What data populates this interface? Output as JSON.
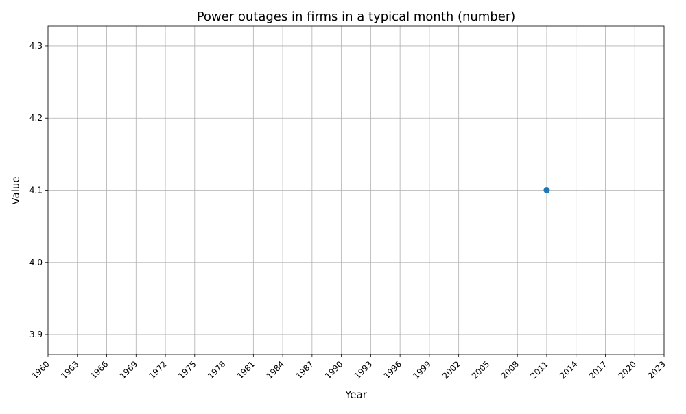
{
  "chart_data": {
    "type": "scatter",
    "title": "Power outages in firms in a typical month (number)",
    "xlabel": "Year",
    "ylabel": "Value",
    "xlim": [
      1960,
      2023
    ],
    "ylim": [
      3.8725,
      4.3275
    ],
    "x_ticks": [
      "1960",
      "1963",
      "1966",
      "1969",
      "1972",
      "1975",
      "1978",
      "1981",
      "1984",
      "1987",
      "1990",
      "1993",
      "1996",
      "1999",
      "2002",
      "2005",
      "2008",
      "2011",
      "2014",
      "2017",
      "2020",
      "2023"
    ],
    "y_ticks": [
      "3.9",
      "4.0",
      "4.1",
      "4.2",
      "4.3"
    ],
    "grid": true,
    "series": [
      {
        "color": "#1f77b4",
        "points": [
          {
            "x": 2011,
            "y": 4.1
          }
        ]
      }
    ]
  }
}
